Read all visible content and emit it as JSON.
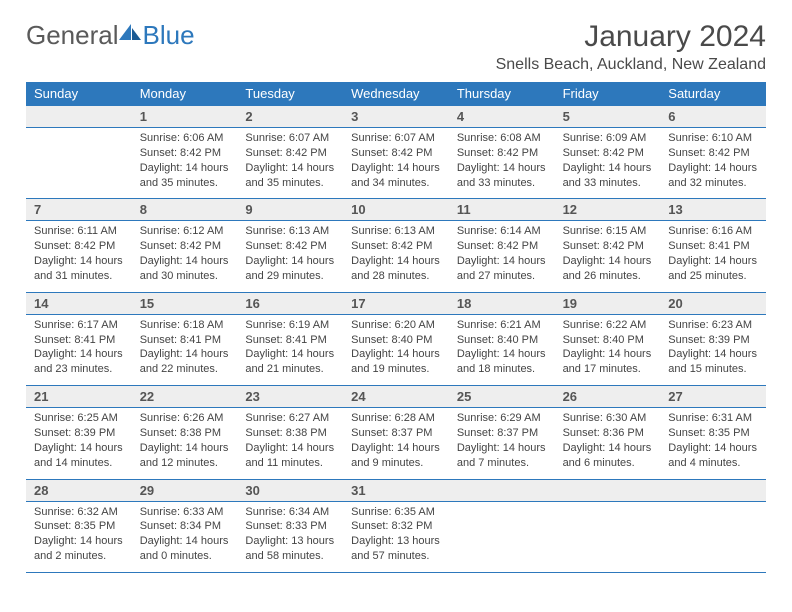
{
  "brand": {
    "word1": "General",
    "word2": "Blue"
  },
  "title": "January 2024",
  "location": "Snells Beach, Auckland, New Zealand",
  "colors": {
    "header_bg": "#2d78bc",
    "header_text": "#ffffff",
    "daynum_bg": "#eeeeee",
    "text": "#3a3a3a",
    "border": "#2d78bc"
  },
  "daysOfWeek": [
    "Sunday",
    "Monday",
    "Tuesday",
    "Wednesday",
    "Thursday",
    "Friday",
    "Saturday"
  ],
  "weeks": [
    [
      null,
      {
        "n": "1",
        "sr": "Sunrise: 6:06 AM",
        "ss": "Sunset: 8:42 PM",
        "dl": "Daylight: 14 hours and 35 minutes."
      },
      {
        "n": "2",
        "sr": "Sunrise: 6:07 AM",
        "ss": "Sunset: 8:42 PM",
        "dl": "Daylight: 14 hours and 35 minutes."
      },
      {
        "n": "3",
        "sr": "Sunrise: 6:07 AM",
        "ss": "Sunset: 8:42 PM",
        "dl": "Daylight: 14 hours and 34 minutes."
      },
      {
        "n": "4",
        "sr": "Sunrise: 6:08 AM",
        "ss": "Sunset: 8:42 PM",
        "dl": "Daylight: 14 hours and 33 minutes."
      },
      {
        "n": "5",
        "sr": "Sunrise: 6:09 AM",
        "ss": "Sunset: 8:42 PM",
        "dl": "Daylight: 14 hours and 33 minutes."
      },
      {
        "n": "6",
        "sr": "Sunrise: 6:10 AM",
        "ss": "Sunset: 8:42 PM",
        "dl": "Daylight: 14 hours and 32 minutes."
      }
    ],
    [
      {
        "n": "7",
        "sr": "Sunrise: 6:11 AM",
        "ss": "Sunset: 8:42 PM",
        "dl": "Daylight: 14 hours and 31 minutes."
      },
      {
        "n": "8",
        "sr": "Sunrise: 6:12 AM",
        "ss": "Sunset: 8:42 PM",
        "dl": "Daylight: 14 hours and 30 minutes."
      },
      {
        "n": "9",
        "sr": "Sunrise: 6:13 AM",
        "ss": "Sunset: 8:42 PM",
        "dl": "Daylight: 14 hours and 29 minutes."
      },
      {
        "n": "10",
        "sr": "Sunrise: 6:13 AM",
        "ss": "Sunset: 8:42 PM",
        "dl": "Daylight: 14 hours and 28 minutes."
      },
      {
        "n": "11",
        "sr": "Sunrise: 6:14 AM",
        "ss": "Sunset: 8:42 PM",
        "dl": "Daylight: 14 hours and 27 minutes."
      },
      {
        "n": "12",
        "sr": "Sunrise: 6:15 AM",
        "ss": "Sunset: 8:42 PM",
        "dl": "Daylight: 14 hours and 26 minutes."
      },
      {
        "n": "13",
        "sr": "Sunrise: 6:16 AM",
        "ss": "Sunset: 8:41 PM",
        "dl": "Daylight: 14 hours and 25 minutes."
      }
    ],
    [
      {
        "n": "14",
        "sr": "Sunrise: 6:17 AM",
        "ss": "Sunset: 8:41 PM",
        "dl": "Daylight: 14 hours and 23 minutes."
      },
      {
        "n": "15",
        "sr": "Sunrise: 6:18 AM",
        "ss": "Sunset: 8:41 PM",
        "dl": "Daylight: 14 hours and 22 minutes."
      },
      {
        "n": "16",
        "sr": "Sunrise: 6:19 AM",
        "ss": "Sunset: 8:41 PM",
        "dl": "Daylight: 14 hours and 21 minutes."
      },
      {
        "n": "17",
        "sr": "Sunrise: 6:20 AM",
        "ss": "Sunset: 8:40 PM",
        "dl": "Daylight: 14 hours and 19 minutes."
      },
      {
        "n": "18",
        "sr": "Sunrise: 6:21 AM",
        "ss": "Sunset: 8:40 PM",
        "dl": "Daylight: 14 hours and 18 minutes."
      },
      {
        "n": "19",
        "sr": "Sunrise: 6:22 AM",
        "ss": "Sunset: 8:40 PM",
        "dl": "Daylight: 14 hours and 17 minutes."
      },
      {
        "n": "20",
        "sr": "Sunrise: 6:23 AM",
        "ss": "Sunset: 8:39 PM",
        "dl": "Daylight: 14 hours and 15 minutes."
      }
    ],
    [
      {
        "n": "21",
        "sr": "Sunrise: 6:25 AM",
        "ss": "Sunset: 8:39 PM",
        "dl": "Daylight: 14 hours and 14 minutes."
      },
      {
        "n": "22",
        "sr": "Sunrise: 6:26 AM",
        "ss": "Sunset: 8:38 PM",
        "dl": "Daylight: 14 hours and 12 minutes."
      },
      {
        "n": "23",
        "sr": "Sunrise: 6:27 AM",
        "ss": "Sunset: 8:38 PM",
        "dl": "Daylight: 14 hours and 11 minutes."
      },
      {
        "n": "24",
        "sr": "Sunrise: 6:28 AM",
        "ss": "Sunset: 8:37 PM",
        "dl": "Daylight: 14 hours and 9 minutes."
      },
      {
        "n": "25",
        "sr": "Sunrise: 6:29 AM",
        "ss": "Sunset: 8:37 PM",
        "dl": "Daylight: 14 hours and 7 minutes."
      },
      {
        "n": "26",
        "sr": "Sunrise: 6:30 AM",
        "ss": "Sunset: 8:36 PM",
        "dl": "Daylight: 14 hours and 6 minutes."
      },
      {
        "n": "27",
        "sr": "Sunrise: 6:31 AM",
        "ss": "Sunset: 8:35 PM",
        "dl": "Daylight: 14 hours and 4 minutes."
      }
    ],
    [
      {
        "n": "28",
        "sr": "Sunrise: 6:32 AM",
        "ss": "Sunset: 8:35 PM",
        "dl": "Daylight: 14 hours and 2 minutes."
      },
      {
        "n": "29",
        "sr": "Sunrise: 6:33 AM",
        "ss": "Sunset: 8:34 PM",
        "dl": "Daylight: 14 hours and 0 minutes."
      },
      {
        "n": "30",
        "sr": "Sunrise: 6:34 AM",
        "ss": "Sunset: 8:33 PM",
        "dl": "Daylight: 13 hours and 58 minutes."
      },
      {
        "n": "31",
        "sr": "Sunrise: 6:35 AM",
        "ss": "Sunset: 8:32 PM",
        "dl": "Daylight: 13 hours and 57 minutes."
      },
      null,
      null,
      null
    ]
  ]
}
